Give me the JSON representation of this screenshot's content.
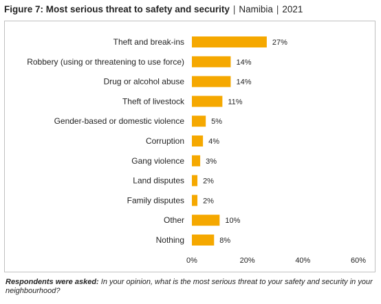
{
  "title": {
    "main": "Figure 7: Most serious threat to safety and security",
    "separator": "|",
    "country": "Namibia",
    "year": "2021"
  },
  "note": {
    "label": "Respondents were asked:",
    "text": "In your opinion, what is the most serious threat to your safety and security in your neighbourhood?"
  },
  "colors": {
    "bar": "#f5a800"
  },
  "chart_data": {
    "type": "bar",
    "orientation": "horizontal",
    "categories": [
      "Theft and break-ins",
      "Robbery (using or threatening to use force)",
      "Drug or alcohol abuse",
      "Theft of livestock",
      "Gender-based or domestic violence",
      "Corruption",
      "Gang violence",
      "Land disputes",
      "Family disputes",
      "Other",
      "Nothing"
    ],
    "values": [
      27,
      14,
      14,
      11,
      5,
      4,
      3,
      2,
      2,
      10,
      8
    ],
    "value_labels": [
      "27%",
      "14%",
      "14%",
      "11%",
      "5%",
      "4%",
      "3%",
      "2%",
      "2%",
      "10%",
      "8%"
    ],
    "xlim": [
      0,
      60
    ],
    "xticks": [
      0,
      20,
      40,
      60
    ],
    "xtick_labels": [
      "0%",
      "20%",
      "40%",
      "60%"
    ],
    "grid": false
  }
}
